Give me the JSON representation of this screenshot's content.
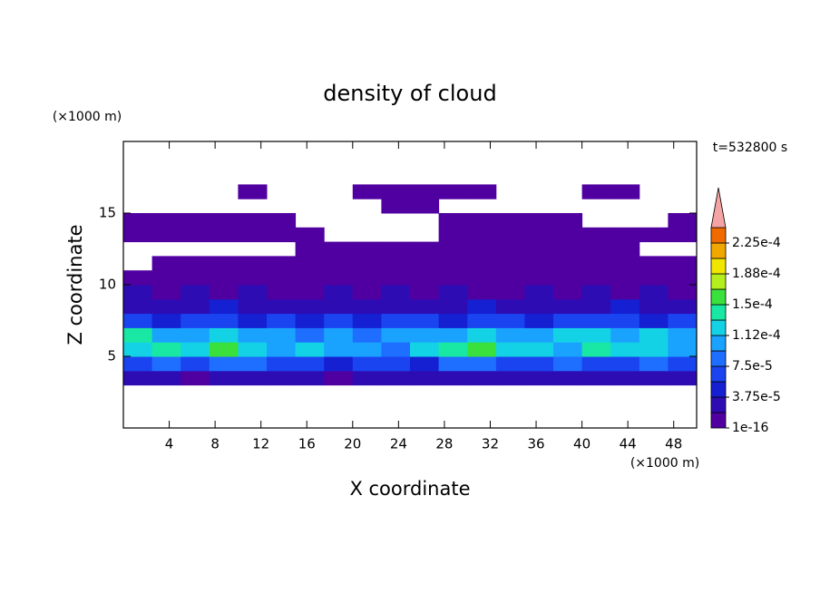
{
  "chart_data": {
    "type": "contour",
    "title": "density of cloud",
    "x_label": "X coordinate",
    "y_label": "Z coordinate",
    "x_unit": "(×1000 m)",
    "y_unit": "(×1000 m)",
    "annotation": "t=532800 s",
    "xlim": [
      0,
      50
    ],
    "ylim": [
      0,
      20
    ],
    "xticks": [
      4,
      8,
      12,
      16,
      20,
      24,
      28,
      32,
      36,
      40,
      44,
      48
    ],
    "yticks": [
      5,
      10,
      15
    ],
    "x": [
      1.25,
      3.75,
      6.25,
      8.75,
      11.25,
      13.75,
      16.25,
      18.75,
      21.25,
      23.75,
      26.25,
      28.75,
      31.25,
      33.75,
      36.25,
      38.75,
      41.25,
      43.75,
      46.25,
      48.75
    ],
    "y": [
      3.5,
      4.5,
      5.5,
      6.5,
      7.5,
      8.5,
      9.5,
      10.5,
      11.5,
      12.5,
      13.5,
      14.5,
      15.5,
      16.5
    ],
    "z": [
      [
        2e-05,
        2e-05,
        1e-05,
        2e-05,
        3e-05,
        2e-05,
        2e-05,
        1e-05,
        2e-05,
        2e-05,
        2e-05,
        2e-05,
        3e-05,
        2e-05,
        2e-05,
        2e-05,
        3e-05,
        2e-05,
        2e-05,
        2e-05
      ],
      [
        6e-05,
        8e-05,
        6e-05,
        9e-05,
        8e-05,
        7e-05,
        6e-05,
        5e-05,
        6e-05,
        7e-05,
        5e-05,
        8e-05,
        9e-05,
        7e-05,
        6e-05,
        8e-05,
        7e-05,
        6e-05,
        9e-05,
        7e-05
      ],
      [
        0.00013,
        0.00014,
        0.00012,
        0.00016,
        0.00013,
        0.00011,
        0.00012,
        0.0001,
        0.00011,
        9e-05,
        0.00012,
        0.00014,
        0.00016,
        0.00013,
        0.00012,
        0.00011,
        0.00014,
        0.00013,
        0.00012,
        0.00011
      ],
      [
        0.00014,
        0.00011,
        0.0001,
        0.00012,
        0.00011,
        0.0001,
        9e-05,
        0.0001,
        9e-05,
        0.0001,
        0.00011,
        0.0001,
        0.00012,
        0.00011,
        0.0001,
        0.00012,
        0.00013,
        0.00011,
        0.00012,
        0.0001
      ],
      [
        6e-05,
        5e-05,
        6e-05,
        7e-05,
        5e-05,
        6e-05,
        4e-05,
        6e-05,
        5e-05,
        7e-05,
        6e-05,
        5e-05,
        6e-05,
        7e-05,
        5e-05,
        6e-05,
        7e-05,
        6e-05,
        5e-05,
        6e-05
      ],
      [
        3e-05,
        2e-05,
        3e-05,
        4e-05,
        3e-05,
        2e-05,
        3e-05,
        2e-05,
        3e-05,
        3e-05,
        2e-05,
        3e-05,
        4e-05,
        3e-05,
        2e-05,
        3e-05,
        3e-05,
        4e-05,
        3e-05,
        2e-05
      ],
      [
        2e-05,
        1e-05,
        2e-05,
        1e-05,
        2e-05,
        1e-05,
        1e-05,
        2e-05,
        1e-05,
        2e-05,
        1e-05,
        2e-05,
        1e-05,
        1e-05,
        2e-05,
        1e-05,
        2e-05,
        1e-05,
        2e-05,
        1e-05
      ],
      [
        1e-05,
        1e-05,
        1e-05,
        1e-05,
        1e-05,
        1e-05,
        1e-05,
        1e-05,
        1e-05,
        1e-05,
        1e-05,
        1e-05,
        1e-05,
        1e-05,
        1e-05,
        1e-05,
        1e-05,
        1e-05,
        1e-05,
        1e-05
      ],
      [
        0,
        1e-05,
        1e-05,
        1e-05,
        1e-05,
        1e-05,
        1e-05,
        1e-05,
        1e-05,
        1e-05,
        1e-05,
        1e-05,
        1e-05,
        1e-05,
        1e-05,
        1e-05,
        1e-05,
        1e-05,
        1e-05,
        1e-05
      ],
      [
        0,
        0,
        0,
        0,
        0,
        0,
        1e-05,
        1e-05,
        1e-05,
        1e-05,
        1e-05,
        1e-05,
        1e-05,
        1e-05,
        1e-05,
        1e-05,
        1e-05,
        1e-05,
        0,
        0
      ],
      [
        1e-05,
        1e-05,
        1e-05,
        1e-05,
        1e-05,
        1e-05,
        1e-05,
        0,
        0,
        0,
        0,
        1e-05,
        1e-05,
        1e-05,
        1e-05,
        1e-05,
        1e-05,
        1e-05,
        1e-05,
        1e-05
      ],
      [
        1e-05,
        1e-05,
        1e-05,
        1e-05,
        1e-05,
        1e-05,
        0,
        0,
        0,
        0,
        0,
        1e-05,
        1e-05,
        1e-05,
        1e-05,
        1e-05,
        0,
        0,
        0,
        1e-05
      ],
      [
        0,
        0,
        0,
        0,
        0,
        0,
        0,
        0,
        0,
        1e-05,
        1e-05,
        0,
        0,
        0,
        0,
        0,
        0,
        0,
        0,
        0
      ],
      [
        0,
        0,
        0,
        0,
        1e-05,
        0,
        0,
        0,
        1e-05,
        1e-05,
        1e-05,
        1e-05,
        1e-05,
        0,
        0,
        0,
        1e-05,
        1e-05,
        0,
        0
      ]
    ],
    "levels": [
      1e-16,
      1.875e-05,
      3.75e-05,
      5.625e-05,
      7.5e-05,
      9.375e-05,
      0.0001125,
      0.00013125,
      0.00015,
      0.00016875,
      0.0001875,
      0.00020625,
      0.000225,
      0.00024375
    ],
    "colors": [
      "#5000a0",
      "#2e0cb4",
      "#1420d2",
      "#1a44f0",
      "#1e6eff",
      "#1aa2ff",
      "#14d2e6",
      "#18e8a4",
      "#3ae03c",
      "#b4ee1c",
      "#f0e600",
      "#f0a800",
      "#f06a00"
    ],
    "extend_color": "#f4a4a4",
    "colorbar_ticks": [
      {
        "value": 1e-16,
        "label": "1e-16"
      },
      {
        "value": 3.75e-05,
        "label": "3.75e-5"
      },
      {
        "value": 7.5e-05,
        "label": "7.5e-5"
      },
      {
        "value": 0.0001125,
        "label": "1.12e-4"
      },
      {
        "value": 0.00015,
        "label": "1.5e-4"
      },
      {
        "value": 0.0001875,
        "label": "1.88e-4"
      },
      {
        "value": 0.000225,
        "label": "2.25e-4"
      }
    ]
  }
}
